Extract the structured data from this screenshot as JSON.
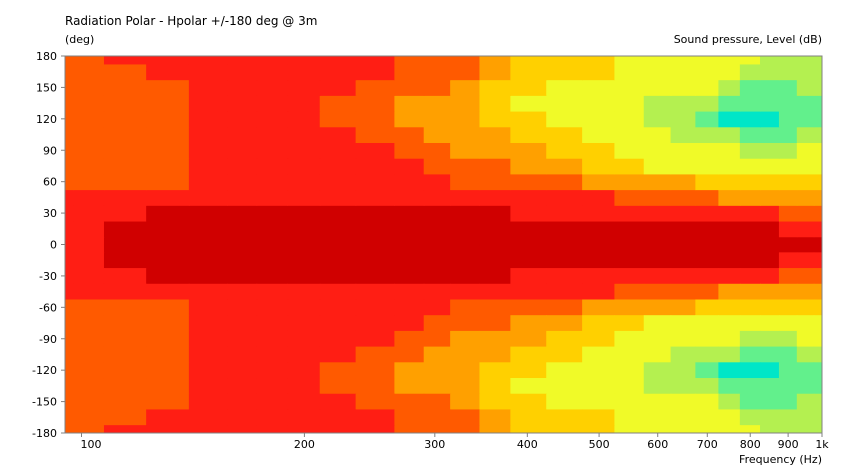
{
  "chart_data": {
    "type": "heatmap",
    "title": "Radiation Polar - Hpolar +/-180 deg @ 3m",
    "ylabel": "(deg)",
    "xlabel": "Frequency  (Hz)",
    "colorbar_label": "Sound pressure, Level  (dB)",
    "x_scale": "log",
    "xlim": [
      95,
      1000
    ],
    "ylim": [
      -180,
      180
    ],
    "x_ticks": [
      {
        "value": 100,
        "label": "100"
      },
      {
        "value": 200,
        "label": "200"
      },
      {
        "value": 300,
        "label": "300"
      },
      {
        "value": 400,
        "label": "400"
      },
      {
        "value": 500,
        "label": "500"
      },
      {
        "value": 600,
        "label": "600"
      },
      {
        "value": 700,
        "label": "700"
      },
      {
        "value": 800,
        "label": "800"
      },
      {
        "value": 900,
        "label": "900"
      },
      {
        "value": 1000,
        "label": "1k"
      }
    ],
    "y_ticks": [
      {
        "value": 180,
        "label": "180"
      },
      {
        "value": 150,
        "label": "150"
      },
      {
        "value": 120,
        "label": "120"
      },
      {
        "value": 90,
        "label": "90"
      },
      {
        "value": 60,
        "label": "60"
      },
      {
        "value": 30,
        "label": "30"
      },
      {
        "value": 0,
        "label": "0"
      },
      {
        "value": -30,
        "label": "-30"
      },
      {
        "value": -60,
        "label": "-60"
      },
      {
        "value": -90,
        "label": "-90"
      },
      {
        "value": -120,
        "label": "-120"
      },
      {
        "value": -150,
        "label": "-150"
      },
      {
        "value": -180,
        "label": "-180"
      }
    ],
    "level_colors": [
      "#00e6c8",
      "#62f08c",
      "#b4f050",
      "#f0fa28",
      "#ffd000",
      "#ffa000",
      "#ff5a00",
      "#ff1e14",
      "#d00000"
    ],
    "frequencies": [
      95,
      100,
      115,
      130,
      150,
      165,
      180,
      200,
      220,
      250,
      280,
      300,
      330,
      360,
      400,
      450,
      500,
      550,
      600,
      650,
      700,
      750,
      800,
      850,
      900,
      950,
      1000
    ],
    "angles": [
      0,
      15,
      30,
      45,
      60,
      75,
      90,
      105,
      120,
      135,
      150,
      165,
      180
    ],
    "levels": [
      [
        7,
        7,
        8,
        8,
        8,
        8,
        8,
        8,
        8,
        8,
        8,
        8,
        8,
        8,
        8,
        8,
        8,
        8,
        8,
        8,
        8,
        8,
        8,
        8,
        8,
        8,
        8
      ],
      [
        7,
        7,
        8,
        8,
        8,
        8,
        8,
        8,
        8,
        8,
        8,
        8,
        8,
        8,
        8,
        8,
        8,
        8,
        8,
        8,
        8,
        8,
        8,
        8,
        7,
        7,
        7
      ],
      [
        7,
        7,
        7,
        8,
        8,
        8,
        8,
        8,
        8,
        8,
        8,
        8,
        8,
        8,
        7,
        7,
        7,
        7,
        7,
        7,
        7,
        7,
        7,
        7,
        6,
        6,
        6
      ],
      [
        7,
        7,
        7,
        7,
        7,
        7,
        7,
        7,
        7,
        7,
        7,
        7,
        7,
        7,
        7,
        7,
        7,
        6,
        6,
        6,
        6,
        5,
        5,
        5,
        5,
        5,
        5
      ],
      [
        6,
        6,
        6,
        6,
        7,
        7,
        7,
        7,
        7,
        7,
        7,
        7,
        6,
        6,
        6,
        6,
        5,
        5,
        5,
        5,
        4,
        4,
        4,
        4,
        4,
        4,
        4
      ],
      [
        6,
        6,
        6,
        6,
        7,
        7,
        7,
        7,
        7,
        7,
        7,
        6,
        6,
        6,
        5,
        5,
        4,
        4,
        3,
        3,
        3,
        3,
        3,
        3,
        3,
        3,
        3
      ],
      [
        6,
        6,
        6,
        6,
        7,
        7,
        7,
        7,
        7,
        7,
        6,
        6,
        5,
        5,
        5,
        4,
        4,
        3,
        3,
        3,
        3,
        3,
        2,
        2,
        2,
        3,
        3
      ],
      [
        6,
        6,
        6,
        6,
        7,
        7,
        7,
        7,
        7,
        6,
        6,
        5,
        5,
        5,
        4,
        4,
        3,
        3,
        3,
        2,
        2,
        2,
        1,
        1,
        1,
        2,
        2
      ],
      [
        6,
        6,
        6,
        6,
        7,
        7,
        7,
        7,
        6,
        6,
        5,
        5,
        5,
        4,
        4,
        3,
        3,
        3,
        2,
        2,
        1,
        0,
        0,
        0,
        1,
        1,
        1
      ],
      [
        6,
        6,
        6,
        6,
        7,
        7,
        7,
        7,
        6,
        6,
        5,
        5,
        5,
        4,
        3,
        3,
        3,
        3,
        2,
        2,
        2,
        1,
        1,
        1,
        1,
        1,
        1
      ],
      [
        6,
        6,
        6,
        6,
        7,
        7,
        7,
        7,
        7,
        6,
        6,
        6,
        5,
        4,
        4,
        3,
        3,
        3,
        3,
        3,
        3,
        2,
        1,
        1,
        1,
        2,
        2
      ],
      [
        6,
        6,
        6,
        7,
        7,
        7,
        7,
        7,
        7,
        7,
        6,
        6,
        6,
        5,
        4,
        4,
        4,
        3,
        3,
        3,
        3,
        3,
        2,
        2,
        2,
        2,
        2
      ],
      [
        6,
        6,
        7,
        7,
        7,
        7,
        7,
        7,
        7,
        7,
        6,
        6,
        6,
        5,
        4,
        4,
        4,
        3,
        3,
        3,
        3,
        3,
        3,
        2,
        2,
        2,
        2
      ]
    ]
  }
}
